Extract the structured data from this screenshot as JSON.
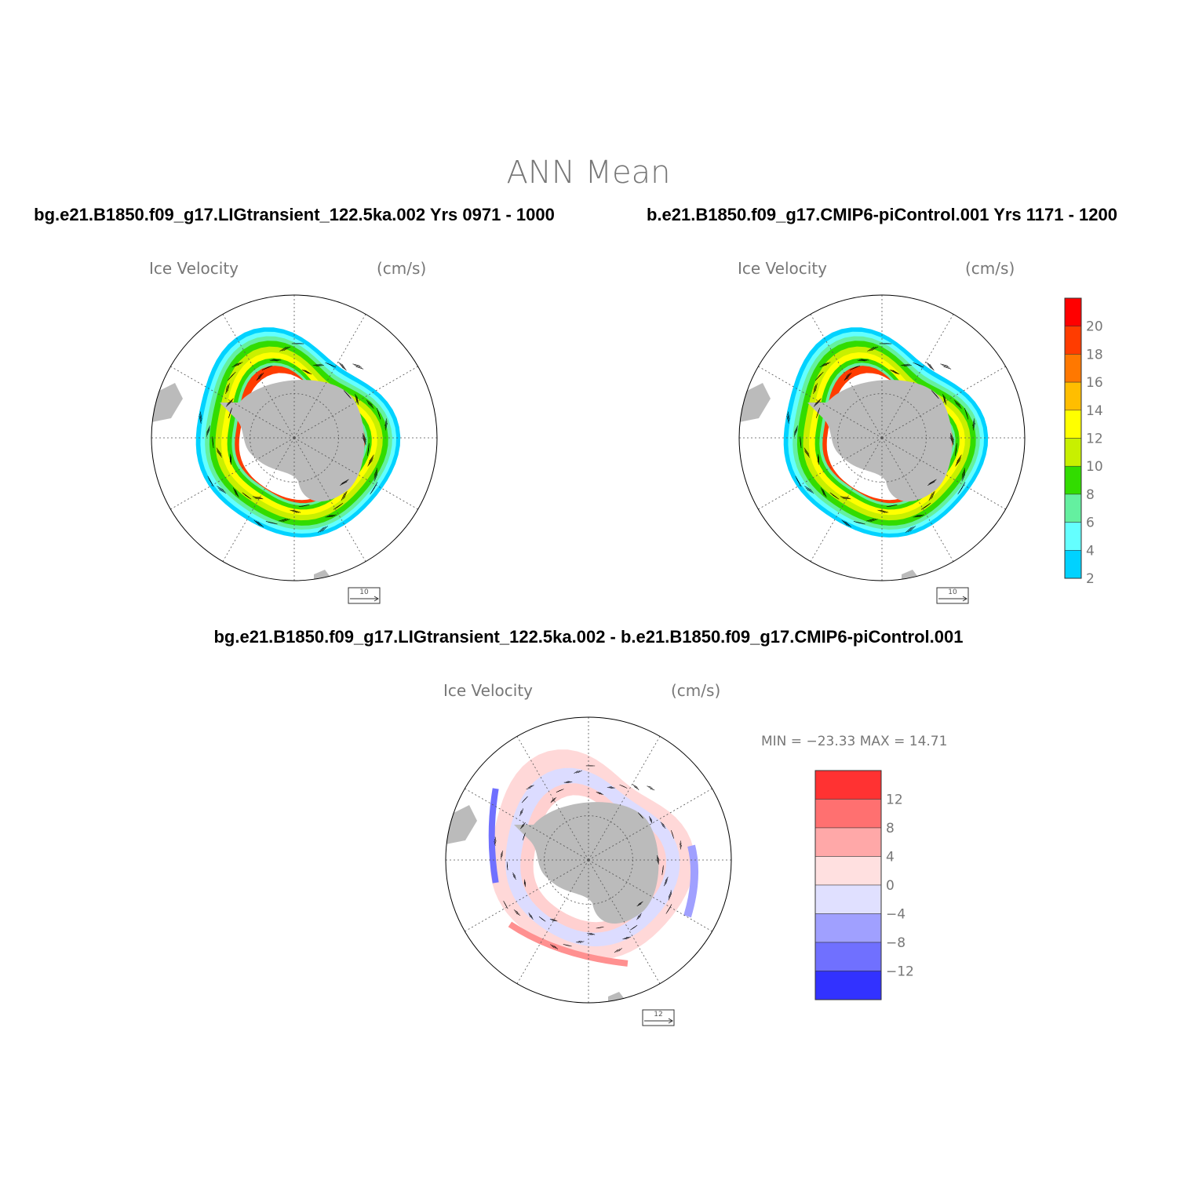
{
  "figure": {
    "title": "ANN Mean",
    "case_top_left": "bg.e21.B1850.f09_g17.LIGtransient_122.5ka.002  Yrs 0971 - 1000",
    "case_top_right": "b.e21.B1850.f09_g17.CMIP6-piControl.001  Yrs 1171 - 1200",
    "case_diff": "bg.e21.B1850.f09_g17.LIGtransient_122.5ka.002 - b.e21.B1850.f09_g17.CMIP6-piControl.001"
  },
  "panels": [
    {
      "id": "left",
      "label": "Ice Velocity",
      "units": "(cm/s)",
      "ref_vector": "10"
    },
    {
      "id": "right",
      "label": "Ice Velocity",
      "units": "(cm/s)",
      "ref_vector": "10"
    },
    {
      "id": "diff",
      "label": "Ice Velocity",
      "units": "(cm/s)",
      "ref_vector": "12",
      "minmax": "MIN = −23.33 MAX =  14.71"
    }
  ],
  "colorbar_speed": {
    "ticks": [
      "20",
      "18",
      "16",
      "14",
      "12",
      "10",
      "8",
      "6",
      "4",
      "2"
    ],
    "colors": [
      "#ff0000",
      "#ff3c00",
      "#ff7800",
      "#ffbe00",
      "#ffff00",
      "#c8f000",
      "#32dc00",
      "#64f0a0",
      "#64ffff",
      "#00d2ff"
    ]
  },
  "colorbar_diff": {
    "ticks": [
      "12",
      "8",
      "4",
      "0",
      "−4",
      "−8",
      "−12"
    ],
    "colors": [
      "#ff3232",
      "#ff7070",
      "#ffa8a8",
      "#ffe0e0",
      "#e0e0ff",
      "#a0a0ff",
      "#7070ff",
      "#3232ff"
    ]
  },
  "map_colors": {
    "land": "#bbbbbb",
    "outline": "#000000",
    "grid": "#555555"
  }
}
